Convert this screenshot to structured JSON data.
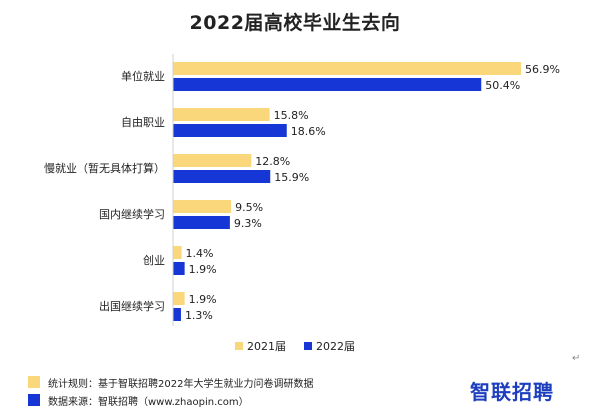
{
  "colors": {
    "series_2021": "#FAD77B",
    "series_2022": "#1636D6",
    "axis": "#D0D0D0",
    "brand": "#1D3FBF"
  },
  "legend": {
    "label_2021": "2021届",
    "label_2022": "2022届"
  },
  "footer": {
    "rule": "统计规则：基于智联招聘2022年大学生就业力问卷调研数据",
    "source": "数据来源：智联招聘（www.zhaopin.com）",
    "brand": "智联招聘"
  },
  "return_mark": "↵",
  "chart_data": {
    "type": "bar",
    "orientation": "horizontal",
    "title": "2022届高校毕业生去向",
    "categories": [
      "单位就业",
      "自由职业",
      "慢就业（暂无具体打算）",
      "国内继续学习",
      "创业",
      "出国继续学习"
    ],
    "series": [
      {
        "name": "2021届",
        "values": [
          56.9,
          15.8,
          12.8,
          9.5,
          1.4,
          1.9
        ]
      },
      {
        "name": "2022届",
        "values": [
          50.4,
          18.6,
          15.9,
          9.3,
          1.9,
          1.3
        ]
      }
    ],
    "value_format": "%",
    "xlim": [
      0,
      60
    ],
    "grid": false,
    "legend_position": "bottom"
  }
}
